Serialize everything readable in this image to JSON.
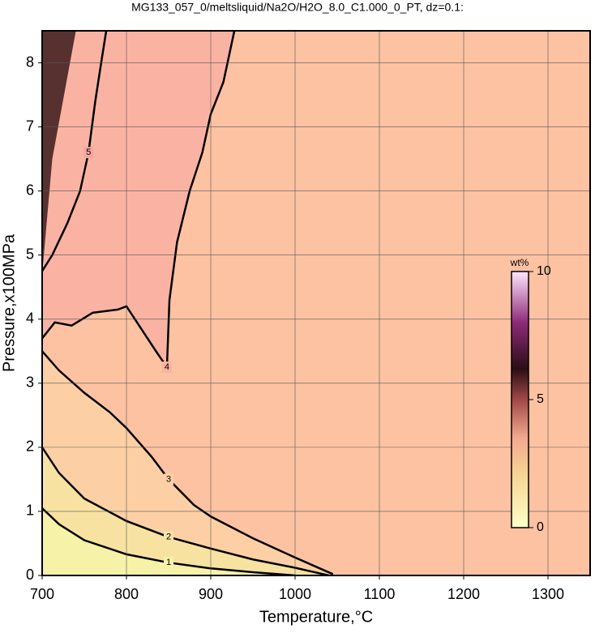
{
  "chart_data": {
    "type": "contour",
    "title": "MG133_057_0/meltsliquid/Na2O/H2O_8.0_C1.000_0_PT, dz=0.1:",
    "xlabel": "Temperature,°C",
    "ylabel": "Pressure,x100MPa",
    "xlim": [
      700,
      1350
    ],
    "xticks": [
      700,
      800,
      900,
      1000,
      1100,
      1200,
      1300
    ],
    "ylim": [
      0,
      8.5
    ],
    "yticks": [
      0,
      1,
      2,
      3,
      4,
      5,
      6,
      7,
      8
    ],
    "grid": true,
    "background": "#fdc2a2",
    "colorbar": {
      "label": "wt%",
      "lim": [
        0,
        10
      ],
      "ticks": [
        0,
        5,
        10
      ]
    },
    "contours": [
      {
        "level": 5,
        "color": "#f7a6a2",
        "x": [
          700,
          712,
          730,
          745,
          755,
          763,
          770,
          776
        ],
        "y": [
          4.75,
          5.0,
          5.5,
          6.0,
          6.6,
          7.4,
          8.0,
          8.5
        ]
      },
      {
        "level": 4,
        "color": "#fab3a2",
        "x": [
          700,
          715,
          735,
          760,
          790,
          800,
          815,
          835,
          848,
          851,
          860,
          875,
          890,
          900,
          915,
          928
        ],
        "y": [
          3.7,
          3.95,
          3.9,
          4.1,
          4.15,
          4.2,
          3.9,
          3.5,
          3.25,
          4.3,
          5.2,
          6.0,
          6.6,
          7.2,
          7.7,
          8.5
        ]
      },
      {
        "level": 3,
        "color": "#fcd0a4",
        "x": [
          700,
          720,
          750,
          780,
          800,
          830,
          850,
          880,
          900,
          950,
          1000,
          1045
        ],
        "y": [
          3.5,
          3.2,
          2.85,
          2.55,
          2.3,
          1.85,
          1.5,
          1.1,
          0.92,
          0.58,
          0.28,
          0.02
        ]
      },
      {
        "level": 2,
        "color": "#f8e2a2",
        "x": [
          700,
          720,
          750,
          800,
          850,
          900,
          950,
          1000,
          1040
        ],
        "y": [
          2.0,
          1.6,
          1.2,
          0.85,
          0.6,
          0.42,
          0.25,
          0.12,
          0.0
        ]
      },
      {
        "level": 1,
        "color": "#f6f2a8",
        "x": [
          700,
          720,
          750,
          800,
          850,
          900,
          950,
          1000
        ],
        "y": [
          1.05,
          0.8,
          0.55,
          0.33,
          0.2,
          0.11,
          0.05,
          0.0
        ]
      }
    ]
  }
}
